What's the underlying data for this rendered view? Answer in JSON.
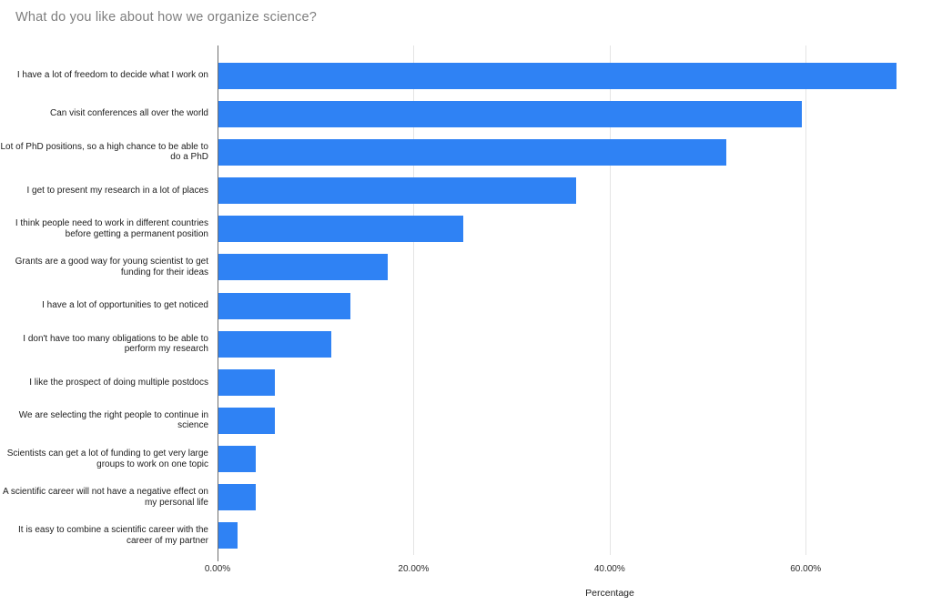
{
  "chart_data": {
    "type": "bar",
    "orientation": "horizontal",
    "title": "What do you like about how we organize science?",
    "categories": [
      "I have a lot of freedom to decide what I work on",
      "Can visit conferences all over the world",
      "Lot of PhD positions, so a high chance to be able to do a PhD",
      "I get to present my research in a lot of places",
      "I think people need to work in different countries before getting a permanent position",
      "Grants are a good way for young scientist to get funding for their ideas",
      "I have a lot of opportunities to get noticed",
      "I don't have too many obligations to be able to perform my research",
      "I like the prospect of doing multiple postdocs",
      "We are selecting the right people to continue in science",
      "Scientists can get a lot of funding to get very large groups to work on one topic",
      "A scientific career will not have a negative effect on my personal life",
      "It is easy to combine a scientific career with the career of my partner"
    ],
    "values": [
      69.23,
      59.62,
      51.92,
      36.54,
      25.0,
      17.31,
      13.46,
      11.54,
      5.77,
      5.77,
      3.85,
      3.85,
      1.92
    ],
    "xlabel": "Percentage",
    "ylabel": "",
    "xlim": [
      0,
      71.4
    ],
    "x_tick_values": [
      0,
      20,
      40,
      60
    ],
    "x_tick_labels": [
      "0.00%",
      "20.00%",
      "40.00%",
      "60.00%"
    ],
    "grid": true,
    "legend": "none"
  },
  "colors": {
    "bar": "#2f82f4",
    "gridline": "#e4e4e4",
    "axis_line": "#6f6f6f",
    "title_text": "#7e7e7e",
    "label_text": "#1c1c1c",
    "background": "#ffffff"
  }
}
